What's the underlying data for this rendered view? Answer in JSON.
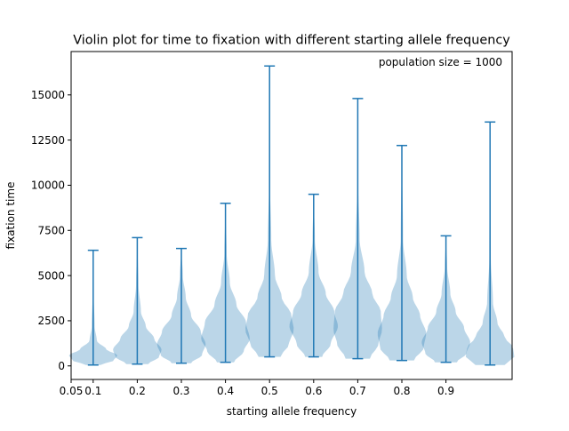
{
  "chart_data": {
    "type": "violin",
    "title": "Violin plot for time to fixation with different starting allele frequency",
    "xlabel": "starting allele frequency",
    "ylabel": "fixation time",
    "annotation": "population size = 1000",
    "xlim": [
      0.05,
      1.05
    ],
    "ylim": [
      -750,
      17400
    ],
    "x_ticks": [
      0.05,
      0.1,
      0.2,
      0.3,
      0.4,
      0.5,
      0.6,
      0.7,
      0.8,
      0.9
    ],
    "x_tick_labels": [
      "0.05",
      "0.1",
      "0.2",
      "0.3",
      "0.4",
      "0.5",
      "0.6",
      "0.7",
      "0.8",
      "0.9"
    ],
    "y_ticks": [
      0,
      2500,
      5000,
      7500,
      10000,
      12500,
      15000
    ],
    "y_tick_labels": [
      "0",
      "2500",
      "5000",
      "7500",
      "10000",
      "12500",
      "15000"
    ],
    "grid": false,
    "body_color": "#1f77b4",
    "body_alpha": 0.3,
    "line_color": "#1f77b4",
    "violins": [
      {
        "x": 0.1,
        "min": 50,
        "max": 6400,
        "max_width": 0.055,
        "width_profile": [
          [
            50,
            0.3
          ],
          [
            300,
            0.85
          ],
          [
            600,
            1.0
          ],
          [
            900,
            0.55
          ],
          [
            1400,
            0.15
          ],
          [
            2200,
            0.06
          ],
          [
            4000,
            0.02
          ],
          [
            6400,
            0.0
          ]
        ]
      },
      {
        "x": 0.2,
        "min": 100,
        "max": 7100,
        "max_width": 0.055,
        "width_profile": [
          [
            100,
            0.45
          ],
          [
            500,
            0.9
          ],
          [
            900,
            1.0
          ],
          [
            1500,
            0.7
          ],
          [
            2200,
            0.35
          ],
          [
            3000,
            0.15
          ],
          [
            4500,
            0.05
          ],
          [
            7100,
            0.0
          ]
        ]
      },
      {
        "x": 0.3,
        "min": 150,
        "max": 6500,
        "max_width": 0.055,
        "width_profile": [
          [
            150,
            0.4
          ],
          [
            600,
            0.85
          ],
          [
            1200,
            1.0
          ],
          [
            1900,
            0.8
          ],
          [
            2800,
            0.4
          ],
          [
            3800,
            0.18
          ],
          [
            5000,
            0.06
          ],
          [
            6500,
            0.0
          ]
        ]
      },
      {
        "x": 0.4,
        "min": 200,
        "max": 9000,
        "max_width": 0.055,
        "width_profile": [
          [
            200,
            0.35
          ],
          [
            800,
            0.75
          ],
          [
            1500,
            1.0
          ],
          [
            2400,
            0.85
          ],
          [
            3400,
            0.45
          ],
          [
            4600,
            0.18
          ],
          [
            6200,
            0.05
          ],
          [
            9000,
            0.0
          ]
        ]
      },
      {
        "x": 0.5,
        "min": 500,
        "max": 16600,
        "max_width": 0.055,
        "width_profile": [
          [
            500,
            0.45
          ],
          [
            1200,
            0.8
          ],
          [
            2000,
            1.0
          ],
          [
            2800,
            0.9
          ],
          [
            3800,
            0.5
          ],
          [
            5000,
            0.22
          ],
          [
            7000,
            0.07
          ],
          [
            10000,
            0.02
          ],
          [
            16600,
            0.0
          ]
        ]
      },
      {
        "x": 0.6,
        "min": 500,
        "max": 9500,
        "max_width": 0.055,
        "width_profile": [
          [
            500,
            0.35
          ],
          [
            1200,
            0.7
          ],
          [
            2200,
            1.0
          ],
          [
            3000,
            0.85
          ],
          [
            4000,
            0.5
          ],
          [
            5200,
            0.2
          ],
          [
            7000,
            0.05
          ],
          [
            9500,
            0.0
          ]
        ]
      },
      {
        "x": 0.7,
        "min": 400,
        "max": 14800,
        "max_width": 0.055,
        "width_profile": [
          [
            400,
            0.5
          ],
          [
            1200,
            0.85
          ],
          [
            2000,
            1.0
          ],
          [
            3000,
            0.95
          ],
          [
            4000,
            0.6
          ],
          [
            5200,
            0.28
          ],
          [
            7000,
            0.08
          ],
          [
            10000,
            0.02
          ],
          [
            14800,
            0.0
          ]
        ]
      },
      {
        "x": 0.8,
        "min": 300,
        "max": 12200,
        "max_width": 0.055,
        "width_profile": [
          [
            300,
            0.5
          ],
          [
            1000,
            0.9
          ],
          [
            1800,
            1.0
          ],
          [
            2800,
            0.75
          ],
          [
            3800,
            0.45
          ],
          [
            5000,
            0.2
          ],
          [
            7000,
            0.05
          ],
          [
            12200,
            0.0
          ]
        ]
      },
      {
        "x": 0.9,
        "min": 200,
        "max": 7200,
        "max_width": 0.055,
        "width_profile": [
          [
            200,
            0.45
          ],
          [
            700,
            0.85
          ],
          [
            1300,
            1.0
          ],
          [
            2100,
            0.75
          ],
          [
            3000,
            0.4
          ],
          [
            4000,
            0.18
          ],
          [
            5500,
            0.05
          ],
          [
            7200,
            0.0
          ]
        ]
      },
      {
        "x": 1.0,
        "min": 50,
        "max": 13500,
        "max_width": 0.055,
        "width_profile": [
          [
            50,
            0.6
          ],
          [
            500,
            1.0
          ],
          [
            1000,
            0.95
          ],
          [
            1600,
            0.6
          ],
          [
            2400,
            0.3
          ],
          [
            3500,
            0.12
          ],
          [
            6000,
            0.03
          ],
          [
            13500,
            0.0
          ]
        ]
      }
    ]
  }
}
